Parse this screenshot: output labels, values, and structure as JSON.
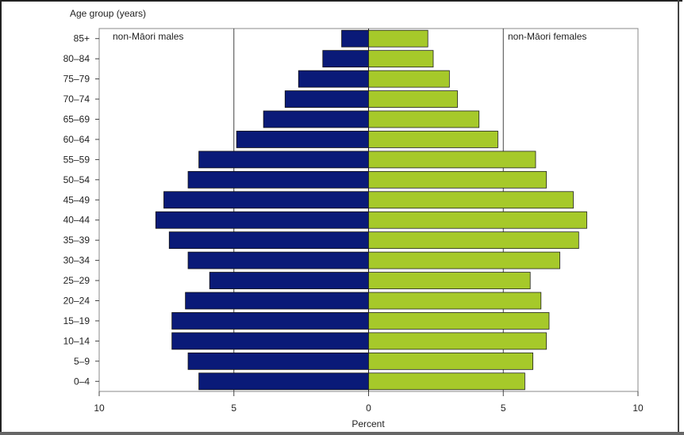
{
  "chart_data": {
    "type": "bar",
    "orientation": "horizontal",
    "layout": "population-pyramid",
    "ylabel": "Age group (years)",
    "xlabel": "Percent",
    "xlim": [
      -10,
      10
    ],
    "x_ticks": [
      -10,
      -5,
      0,
      5,
      10
    ],
    "x_tick_labels": [
      "10",
      "5",
      "0",
      "5",
      "10"
    ],
    "grid": "vertical lines at 5",
    "categories": [
      "85+",
      "80–84",
      "75–79",
      "70–74",
      "65–69",
      "60–64",
      "55–59",
      "50–54",
      "45–49",
      "40–44",
      "35–39",
      "30–34",
      "25–29",
      "20–24",
      "15–19",
      "10–14",
      "5–9",
      "0–4"
    ],
    "series": [
      {
        "name": "non-Māori males",
        "color": "#0a1a78",
        "values": [
          1.0,
          1.7,
          2.6,
          3.1,
          3.9,
          4.9,
          6.3,
          6.7,
          7.6,
          7.9,
          7.4,
          6.7,
          5.9,
          6.8,
          7.3,
          7.3,
          6.7,
          6.3
        ]
      },
      {
        "name": "non-Māori females",
        "color": "#a6c92a",
        "values": [
          2.2,
          2.4,
          3.0,
          3.3,
          4.1,
          4.8,
          6.2,
          6.6,
          7.6,
          8.1,
          7.8,
          7.1,
          6.0,
          6.4,
          6.7,
          6.6,
          6.1,
          5.8
        ]
      }
    ]
  }
}
